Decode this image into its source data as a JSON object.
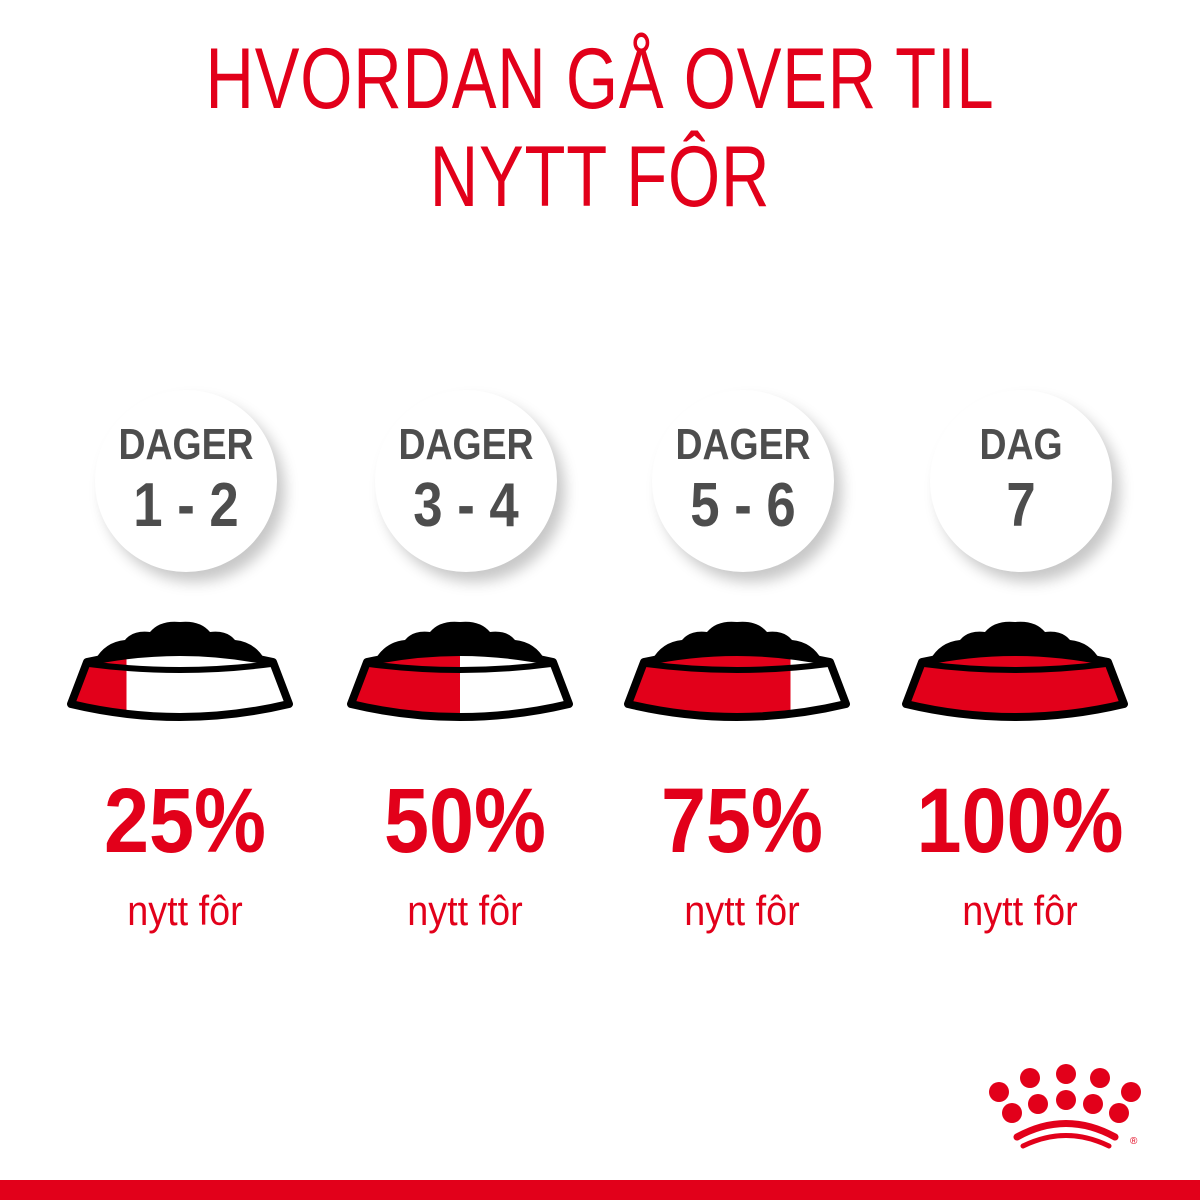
{
  "title": {
    "line1": "HVORDAN GÅ OVER TIL",
    "line2": "NYTT FÔR"
  },
  "steps": [
    {
      "label": "DAGER",
      "days": "1 - 2",
      "percent": "25%",
      "caption": "nytt fôr",
      "new_food_fraction": 0.25
    },
    {
      "label": "DAGER",
      "days": "3 - 4",
      "percent": "50%",
      "caption": "nytt fôr",
      "new_food_fraction": 0.5
    },
    {
      "label": "DAGER",
      "days": "5 - 6",
      "percent": "75%",
      "caption": "nytt fôr",
      "new_food_fraction": 0.75
    },
    {
      "label": "DAG",
      "days": "7",
      "percent": "100%",
      "caption": "nytt fôr",
      "new_food_fraction": 1.0
    }
  ],
  "logo": {
    "name": "royal-canin-crown-logo",
    "registered": "®"
  },
  "colors": {
    "accent": "#e2001a",
    "text_gray": "#4d4d4d",
    "kibble": "#000000"
  }
}
